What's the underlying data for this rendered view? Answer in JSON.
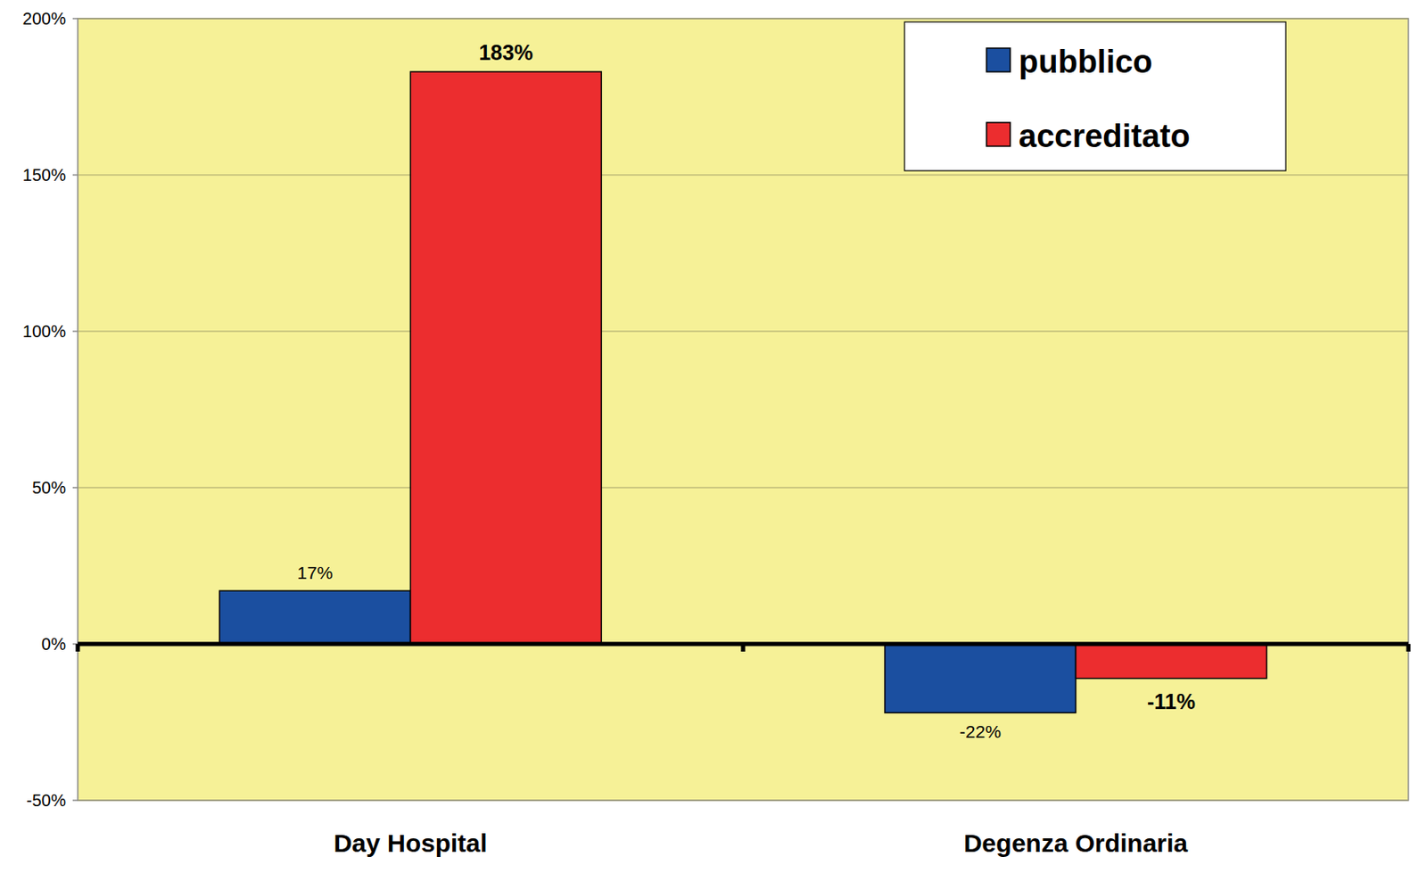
{
  "chart_data": {
    "type": "bar",
    "categories": [
      "Day Hospital",
      "Degenza Ordinaria"
    ],
    "series": [
      {
        "name": "pubblico",
        "color": "#1b4fa0",
        "values": [
          17,
          -22
        ],
        "value_labels": [
          "17%",
          "-22%"
        ]
      },
      {
        "name": "accreditato",
        "color": "#ec2d2f",
        "values": [
          183,
          -11
        ],
        "value_labels": [
          "183%",
          "-11%"
        ]
      }
    ],
    "ylim": [
      -50,
      200
    ],
    "yticks": [
      {
        "value": -50,
        "label": "-50%"
      },
      {
        "value": 0,
        "label": "0%"
      },
      {
        "value": 50,
        "label": "50%"
      },
      {
        "value": 100,
        "label": "100%"
      },
      {
        "value": 150,
        "label": "150%"
      },
      {
        "value": 200,
        "label": "200%"
      }
    ],
    "grid": true,
    "legend": "top-right",
    "data_labels": true
  }
}
